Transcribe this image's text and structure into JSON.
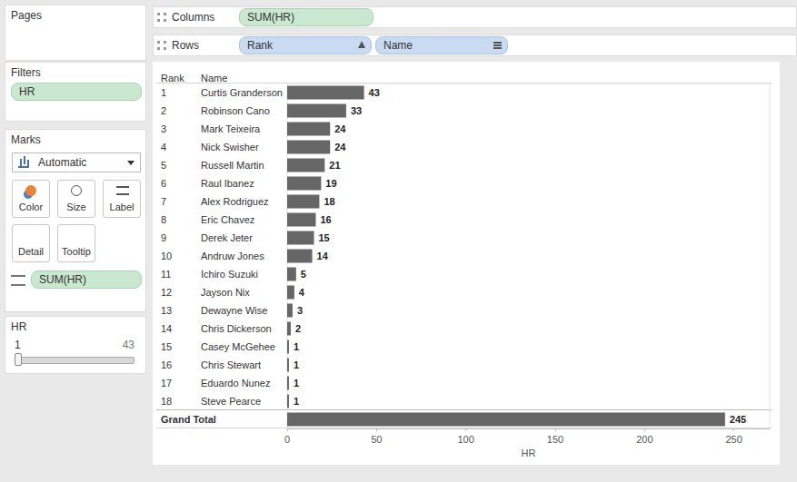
{
  "shelves": {
    "columns": {
      "label": "Columns",
      "pills": [
        "SUM(HR)"
      ]
    },
    "rows": {
      "label": "Rows",
      "pills": [
        "Rank",
        "Name"
      ]
    }
  },
  "side_panel": {
    "pages": {
      "title": "Pages"
    },
    "filters": {
      "title": "Filters",
      "pills": [
        "HR"
      ]
    },
    "marks": {
      "title": "Marks",
      "mark_type": "Automatic",
      "buttons": [
        "Color",
        "Size",
        "Label",
        "Detail",
        "Tooltip"
      ],
      "pills": [
        "SUM(HR)"
      ]
    },
    "filter_card": {
      "title": "HR",
      "min": 1,
      "max": 43
    }
  },
  "chart_data": {
    "type": "bar",
    "orientation": "horizontal",
    "row_headers": [
      "Rank",
      "Name"
    ],
    "ranks": [
      1,
      2,
      3,
      4,
      5,
      6,
      7,
      8,
      9,
      10,
      11,
      12,
      13,
      14,
      15,
      16,
      17,
      18
    ],
    "categories": [
      "Curtis Granderson",
      "Robinson Cano",
      "Mark Teixeira",
      "Nick Swisher",
      "Russell Martin",
      "Raul Ibanez",
      "Alex Rodriguez",
      "Eric Chavez",
      "Derek Jeter",
      "Andruw Jones",
      "Ichiro Suzuki",
      "Jayson Nix",
      "Dewayne Wise",
      "Chris Dickerson",
      "Casey McGehee",
      "Chris Stewart",
      "Eduardo Nunez",
      "Steve Pearce"
    ],
    "values": [
      43,
      33,
      24,
      24,
      21,
      19,
      18,
      16,
      15,
      14,
      5,
      4,
      3,
      2,
      1,
      1,
      1,
      1
    ],
    "total_label": "Grand Total",
    "total_value": 245,
    "x_label": "HR",
    "xlim": [
      0,
      270
    ],
    "xticks": [
      0,
      50,
      100,
      150,
      200,
      250
    ],
    "color": "#666666",
    "data_labels": true,
    "grid": false
  }
}
